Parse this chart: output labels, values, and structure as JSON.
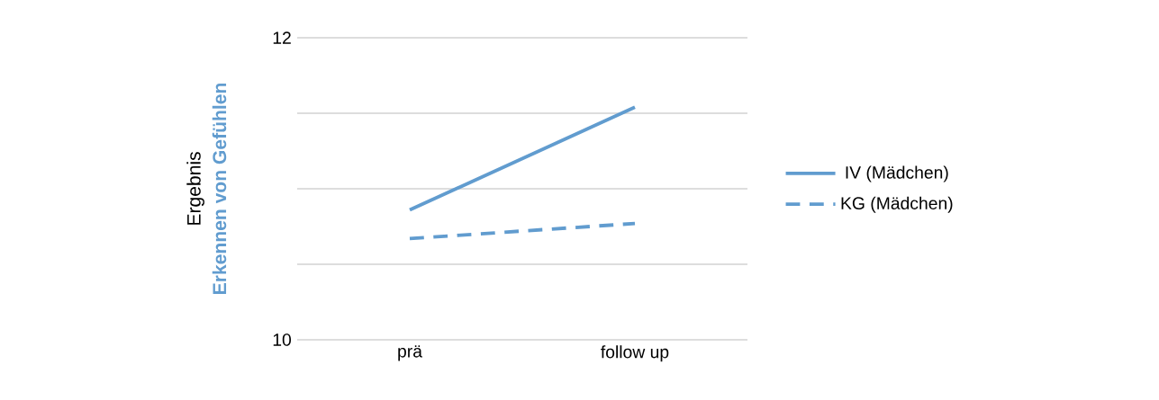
{
  "chart_data": {
    "type": "line",
    "ylabel": "Ergebnis",
    "annotations": [
      "Erkennen von Gefühlen"
    ],
    "categories": [
      "prä",
      "follow up"
    ],
    "series": [
      {
        "name": "IV (Mädchen)",
        "color": "#619ccf",
        "values": [
          10.86,
          11.54
        ],
        "line_style": "solid"
      },
      {
        "name": "KG (Mädchen)",
        "color": "#619ccf",
        "values": [
          10.67,
          10.77
        ],
        "line_style": "dashed"
      }
    ],
    "ylim": [
      10,
      12
    ],
    "yticks": [
      10,
      {
        "value": 10.5,
        "label": null
      },
      {
        "value": 11,
        "label": null
      },
      {
        "value": 11.5,
        "label": null
      },
      12
    ],
    "grid": "y",
    "legend": "right",
    "marker": "none"
  }
}
